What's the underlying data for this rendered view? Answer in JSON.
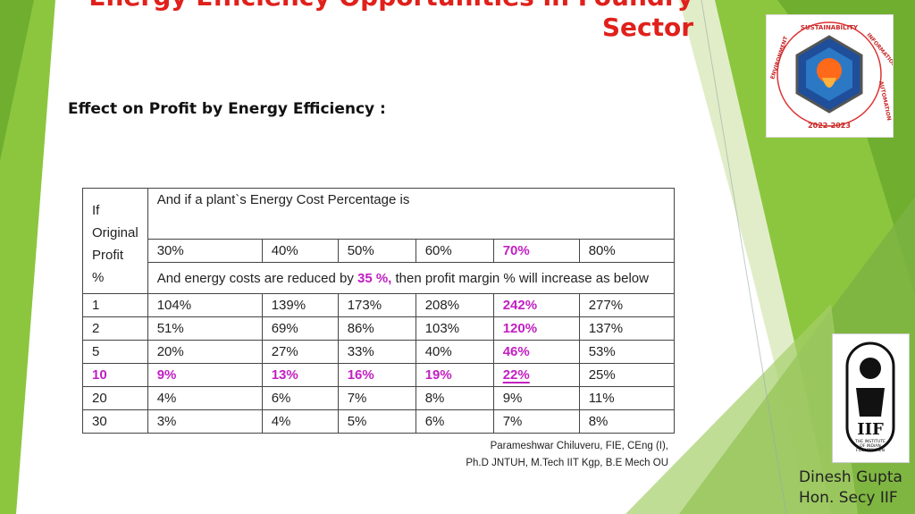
{
  "slide": {
    "title": "Energy Efficiency Opportunities in Foundry Sector",
    "subtitle": "Effect on Profit by Energy Efficiency :",
    "author": "Dinesh Gupta\nHon. Secy IIF",
    "credit_line1": "Parameshwar Chiluveru, FIE, CEng (I),",
    "credit_line2": "Ph.D JNTUH, M.Tech IIT Kgp, B.E Mech OU",
    "colors": {
      "title": "#e0201b",
      "highlight": "#c21fc2",
      "green": "#7cb342"
    }
  },
  "logo1": {
    "top_text": "SUSTAINABILITY",
    "left_text": "ENVIRONMENT",
    "right_text": "INFORMATION",
    "right2_text": "AUTOMATION",
    "year": "2022-2023"
  },
  "logo2": {
    "line1": "THE INSTITUTE",
    "line2": "OF INDIAN",
    "line3": "FOUNDRYMEN"
  },
  "table": {
    "corner_lines": [
      "If",
      "Original",
      "Profit %"
    ],
    "header1": "And if a plant`s Energy Cost  Percentage is",
    "percentages": [
      "30%",
      "40%",
      "50%",
      "60%",
      "70%",
      "80%"
    ],
    "reduction_prefix": "And energy  costs are  reduced by ",
    "reduction_value": "35 %,",
    "reduction_suffix": " then profit margin % will increase as below",
    "rows": [
      {
        "profit": "1",
        "values": [
          "104%",
          "139%",
          "173%",
          "208%",
          "242%",
          "277%"
        ]
      },
      {
        "profit": "2",
        "values": [
          "51%",
          "69%",
          "86%",
          "103%",
          "120%",
          "137%"
        ]
      },
      {
        "profit": "5",
        "values": [
          "20%",
          "27%",
          "33%",
          "40%",
          "46%",
          "53%"
        ]
      },
      {
        "profit": "10",
        "values": [
          "9%",
          "13%",
          "16%",
          "19%",
          "22%",
          "25%"
        ]
      },
      {
        "profit": "20",
        "values": [
          "4%",
          "6%",
          "7%",
          "8%",
          "9%",
          "11%"
        ]
      },
      {
        "profit": "30",
        "values": [
          "3%",
          "4%",
          "5%",
          "6%",
          "7%",
          "8%"
        ]
      }
    ]
  }
}
